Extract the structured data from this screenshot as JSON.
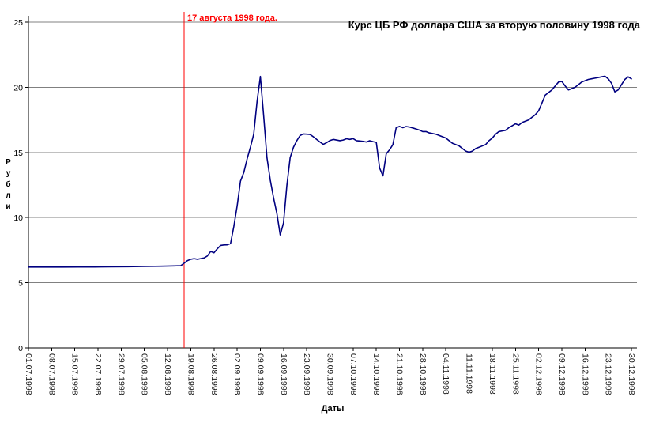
{
  "page": {
    "background": "#ffffff"
  },
  "chart_data": {
    "type": "line",
    "title": "Курс ЦБ РФ доллара США за вторую половину 1998 года",
    "xlabel": "Даты",
    "ylabel": "Рубли",
    "ylim": [
      0,
      25
    ],
    "y_ticks": [
      0,
      5,
      10,
      15,
      20,
      25
    ],
    "grid": "horizontal",
    "legend": "none",
    "axis_color": "#000000",
    "gridline_color": "#808080",
    "annotation": {
      "text": "17 августа 1998 года.",
      "day_offset": 47,
      "color": "#ff0000"
    },
    "x_tick_labels": [
      "01.07.1998",
      "08.07.1998",
      "15.07.1998",
      "22.07.1998",
      "29.07.1998",
      "05.08.1998",
      "12.08.1998",
      "19.08.1998",
      "26.08.1998",
      "02.09.1998",
      "09.09.1998",
      "16.09.1998",
      "23.09.1998",
      "30.09.1998",
      "07.10.1998",
      "14.10.1998",
      "21.10.1998",
      "28.10.1998",
      "04.11.1998",
      "11.11.1998",
      "18.11.1998",
      "25.11.1998",
      "02.12.1998",
      "09.12.1998",
      "16.12.1998",
      "23.12.1998",
      "30.12.1998"
    ],
    "series": [
      {
        "color": "#000080",
        "points": [
          [
            0,
            6.2
          ],
          [
            5,
            6.2
          ],
          [
            10,
            6.2
          ],
          [
            15,
            6.21
          ],
          [
            20,
            6.21
          ],
          [
            25,
            6.22
          ],
          [
            30,
            6.23
          ],
          [
            35,
            6.25
          ],
          [
            40,
            6.27
          ],
          [
            44,
            6.29
          ],
          [
            46,
            6.31
          ],
          [
            47,
            6.5
          ],
          [
            48,
            6.7
          ],
          [
            49,
            6.8
          ],
          [
            50,
            6.85
          ],
          [
            51,
            6.8
          ],
          [
            52,
            6.85
          ],
          [
            53,
            6.9
          ],
          [
            54,
            7.05
          ],
          [
            55,
            7.4
          ],
          [
            56,
            7.3
          ],
          [
            57,
            7.6
          ],
          [
            58,
            7.86
          ],
          [
            59,
            7.9
          ],
          [
            60,
            7.91
          ],
          [
            61,
            8.0
          ],
          [
            62,
            9.33
          ],
          [
            63,
            10.9
          ],
          [
            64,
            12.8
          ],
          [
            65,
            13.46
          ],
          [
            66,
            14.5
          ],
          [
            67,
            15.4
          ],
          [
            68,
            16.4
          ],
          [
            69,
            18.9
          ],
          [
            70,
            20.83
          ],
          [
            71,
            17.8
          ],
          [
            72,
            14.6
          ],
          [
            73,
            12.87
          ],
          [
            74,
            11.5
          ],
          [
            75,
            10.3
          ],
          [
            76,
            8.67
          ],
          [
            77,
            9.6
          ],
          [
            78,
            12.45
          ],
          [
            79,
            14.6
          ],
          [
            80,
            15.4
          ],
          [
            81,
            15.9
          ],
          [
            82,
            16.3
          ],
          [
            83,
            16.42
          ],
          [
            84,
            16.4
          ],
          [
            85,
            16.38
          ],
          [
            86,
            16.2
          ],
          [
            87,
            16.0
          ],
          [
            88,
            15.8
          ],
          [
            89,
            15.62
          ],
          [
            90,
            15.75
          ],
          [
            91,
            15.91
          ],
          [
            92,
            16.0
          ],
          [
            94,
            15.9
          ],
          [
            95,
            15.95
          ],
          [
            96,
            16.05
          ],
          [
            97,
            16.0
          ],
          [
            98,
            16.06
          ],
          [
            99,
            15.9
          ],
          [
            100,
            15.88
          ],
          [
            101,
            15.85
          ],
          [
            102,
            15.8
          ],
          [
            103,
            15.9
          ],
          [
            104,
            15.83
          ],
          [
            105,
            15.77
          ],
          [
            106,
            13.8
          ],
          [
            107,
            13.2
          ],
          [
            108,
            14.9
          ],
          [
            109,
            15.2
          ],
          [
            110,
            15.6
          ],
          [
            111,
            16.9
          ],
          [
            112,
            17.0
          ],
          [
            113,
            16.9
          ],
          [
            114,
            16.99
          ],
          [
            115,
            16.95
          ],
          [
            116,
            16.88
          ],
          [
            117,
            16.8
          ],
          [
            118,
            16.72
          ],
          [
            119,
            16.6
          ],
          [
            120,
            16.6
          ],
          [
            121,
            16.5
          ],
          [
            122,
            16.45
          ],
          [
            123,
            16.4
          ],
          [
            124,
            16.3
          ],
          [
            125,
            16.2
          ],
          [
            126,
            16.1
          ],
          [
            127,
            15.9
          ],
          [
            128,
            15.7
          ],
          [
            129,
            15.6
          ],
          [
            130,
            15.5
          ],
          [
            131,
            15.3
          ],
          [
            132,
            15.1
          ],
          [
            133,
            15.02
          ],
          [
            134,
            15.1
          ],
          [
            135,
            15.3
          ],
          [
            136,
            15.4
          ],
          [
            137,
            15.5
          ],
          [
            138,
            15.6
          ],
          [
            139,
            15.9
          ],
          [
            140,
            16.1
          ],
          [
            141,
            16.4
          ],
          [
            142,
            16.6
          ],
          [
            143,
            16.65
          ],
          [
            144,
            16.7
          ],
          [
            145,
            16.9
          ],
          [
            146,
            17.05
          ],
          [
            147,
            17.2
          ],
          [
            148,
            17.1
          ],
          [
            149,
            17.3
          ],
          [
            150,
            17.4
          ],
          [
            151,
            17.5
          ],
          [
            152,
            17.7
          ],
          [
            153,
            17.9
          ],
          [
            154,
            18.2
          ],
          [
            155,
            18.8
          ],
          [
            156,
            19.4
          ],
          [
            157,
            19.6
          ],
          [
            158,
            19.8
          ],
          [
            159,
            20.1
          ],
          [
            160,
            20.4
          ],
          [
            161,
            20.45
          ],
          [
            162,
            20.1
          ],
          [
            163,
            19.8
          ],
          [
            164,
            19.9
          ],
          [
            165,
            20.0
          ],
          [
            166,
            20.2
          ],
          [
            167,
            20.4
          ],
          [
            168,
            20.5
          ],
          [
            169,
            20.6
          ],
          [
            170,
            20.65
          ],
          [
            171,
            20.7
          ],
          [
            172,
            20.75
          ],
          [
            173,
            20.8
          ],
          [
            174,
            20.85
          ],
          [
            175,
            20.65
          ],
          [
            176,
            20.3
          ],
          [
            177,
            19.65
          ],
          [
            178,
            19.8
          ],
          [
            179,
            20.2
          ],
          [
            180,
            20.6
          ],
          [
            181,
            20.8
          ],
          [
            182,
            20.65
          ]
        ]
      }
    ]
  }
}
